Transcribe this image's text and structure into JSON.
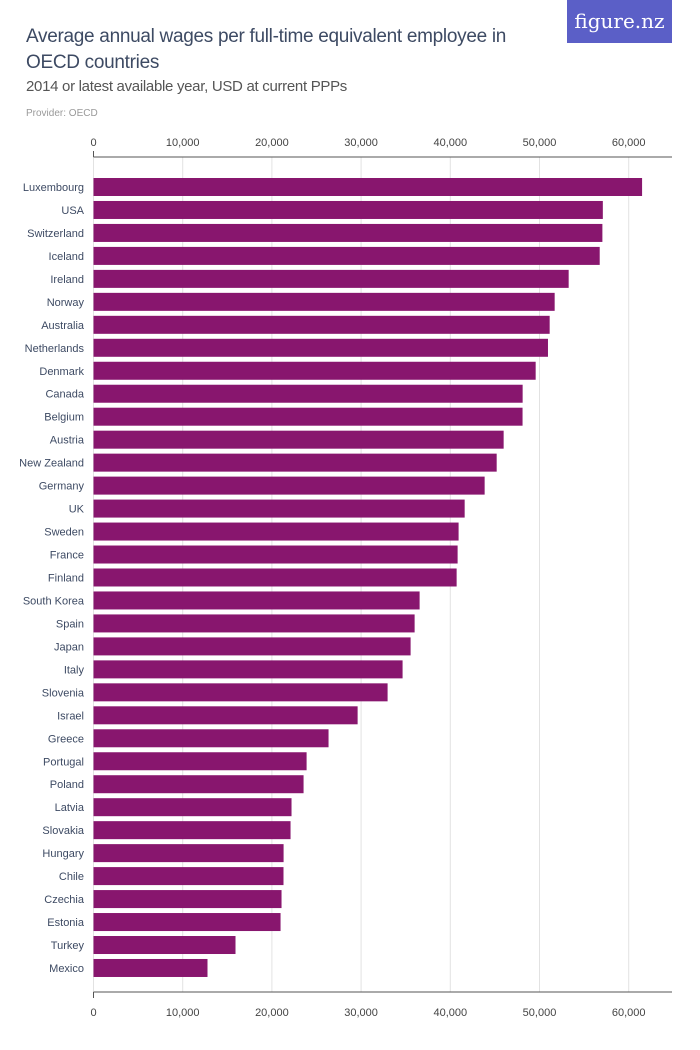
{
  "brand": "figure.nz",
  "chart_data": {
    "type": "bar",
    "orientation": "horizontal",
    "title": "Average annual wages per full-time equivalent employee in OECD countries",
    "subtitle": "2014 or latest available year, USD at current PPPs",
    "provider": "Provider: OECD",
    "xlim": [
      0,
      65000
    ],
    "ticks": [
      0,
      10000,
      20000,
      30000,
      40000,
      50000,
      60000
    ],
    "tick_labels": [
      "0",
      "10,000",
      "20,000",
      "30,000",
      "40,000",
      "50,000",
      "60,000"
    ],
    "grid": true,
    "color": "#88166e",
    "categories": [
      "Luxembourg",
      "USA",
      "Switzerland",
      "Iceland",
      "Ireland",
      "Norway",
      "Australia",
      "Netherlands",
      "Denmark",
      "Canada",
      "Belgium",
      "Austria",
      "New Zealand",
      "Germany",
      "UK",
      "Sweden",
      "France",
      "Finland",
      "South Korea",
      "Spain",
      "Japan",
      "Italy",
      "Slovenia",
      "Israel",
      "Greece",
      "Portugal",
      "Poland",
      "Latvia",
      "Slovakia",
      "Hungary",
      "Chile",
      "Czechia",
      "Estonia",
      "Turkey",
      "Mexico"
    ],
    "values": [
      61500,
      57100,
      57050,
      56750,
      53270,
      51700,
      51140,
      50950,
      49570,
      48110,
      48100,
      45980,
      45200,
      43850,
      41610,
      40930,
      40820,
      40710,
      36560,
      36000,
      35550,
      34650,
      32970,
      29610,
      26350,
      23890,
      23550,
      22200,
      22090,
      21310,
      21300,
      21080,
      20970,
      15920,
      12780
    ]
  }
}
